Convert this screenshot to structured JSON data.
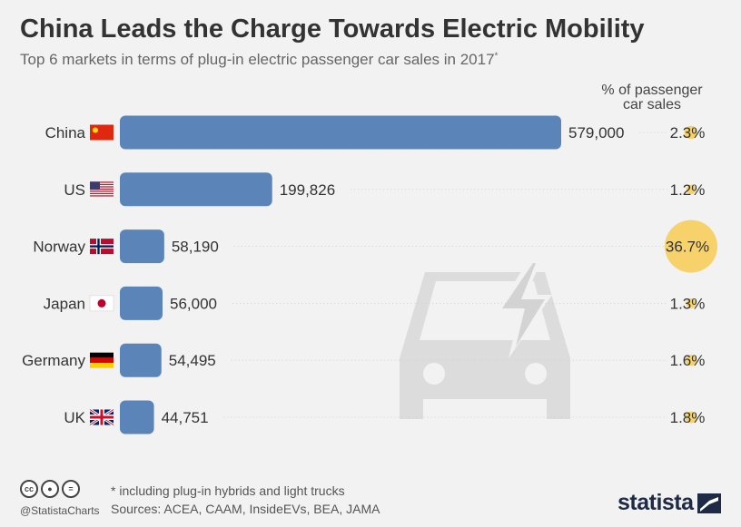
{
  "header": {
    "title": "China Leads the Charge Towards Electric Mobility",
    "subtitle": "Top 6 markets in terms of plug-in electric passenger car sales in 2017",
    "subtitle_mark": "*"
  },
  "share_header": {
    "line1": "% of passenger",
    "line2": "car sales"
  },
  "chart_data": {
    "type": "bar",
    "orientation": "horizontal",
    "categories": [
      "China",
      "US",
      "Norway",
      "Japan",
      "Germany",
      "UK"
    ],
    "values": [
      579000,
      199826,
      58190,
      56000,
      54495,
      44751
    ],
    "value_labels": [
      "579,000",
      "199,826",
      "58,190",
      "56,000",
      "54,495",
      "44,751"
    ],
    "share_of_passenger_car_sales": [
      2.3,
      1.2,
      36.7,
      1.3,
      1.6,
      1.8
    ],
    "share_labels": [
      "2.3%",
      "1.2%",
      "36.7%",
      "1.3%",
      "1.6%",
      "1.8%"
    ],
    "bar_color": "#5b85b8",
    "share_bubble_color": "#f7d26a",
    "grid": false
  },
  "footer": {
    "note": "* including plug-in hybrids and light trucks",
    "sources": "Sources: ACEA, CAAM, InsideEVs, BEA, JAMA",
    "handle": "@StatistaCharts",
    "icons": [
      "cc-icon",
      "by-icon",
      "nd-icon"
    ],
    "logo": "statista"
  }
}
